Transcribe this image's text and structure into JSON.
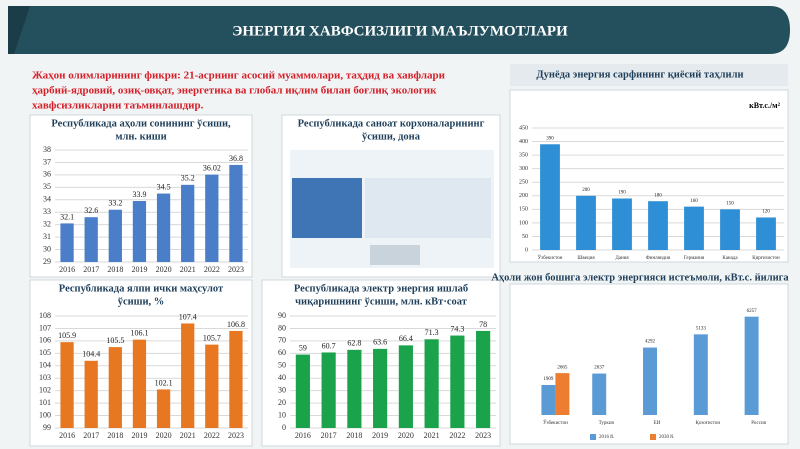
{
  "header": {
    "title": "ЭНЕРГИЯ ХАВФСИЗЛИГИ МАЪЛУМОТЛАРИ"
  },
  "quote": [
    "Жаҳон олимларининг фикри: 21-асрнинг асосий муаммолари, таҳдид ва хавфлари",
    "ҳарбий-ядровий, озиқ-овқат, энергетика ва глобал иқлим билан боғлиқ экологик",
    "хавфсизликларни таъминлашдир."
  ],
  "chart_data": [
    {
      "type": "bar",
      "title": [
        "Республикада аҳоли сонининг ўсиши,",
        "млн. киши"
      ],
      "categories": [
        "2016",
        "2017",
        "2018",
        "2019",
        "2020",
        "2021",
        "2022",
        "2023"
      ],
      "values": [
        32.1,
        32.6,
        33.2,
        33.9,
        34.5,
        35.2,
        36.02,
        36.8
      ],
      "color": "#4a7ec9",
      "ylim": [
        29,
        38
      ],
      "yticks": [
        29,
        30,
        31,
        32,
        33,
        34,
        35,
        36,
        37,
        38
      ],
      "grid": true
    },
    {
      "type": "image",
      "title": [
        "Республикада саноат корхоналарининг",
        "ўсиши, дона"
      ]
    },
    {
      "type": "bar",
      "title": [
        "Республикада ялпи ички маҳсулот",
        "ўсиши, %"
      ],
      "categories": [
        "2016",
        "2017",
        "2018",
        "2019",
        "2020",
        "2021",
        "2022",
        "2023"
      ],
      "values": [
        105.9,
        104.4,
        105.5,
        106.1,
        102.1,
        107.4,
        105.7,
        106.8
      ],
      "color": "#e87722",
      "ylim": [
        99,
        108
      ],
      "yticks": [
        99,
        100,
        101,
        102,
        103,
        104,
        105,
        106,
        107,
        108
      ],
      "grid": true
    },
    {
      "type": "bar",
      "title": [
        "Республикада электр энергия ишлаб",
        "чиқаришнинг ўсиши, млн. кВт·соат"
      ],
      "categories": [
        "2016",
        "2017",
        "2018",
        "2019",
        "2020",
        "2021",
        "2022",
        "2023"
      ],
      "values": [
        59,
        60.7,
        62.8,
        63.6,
        66.4,
        71.3,
        74.3,
        78
      ],
      "color": "#1aa34a",
      "ylim": [
        0,
        90
      ],
      "yticks": [
        0,
        10,
        20,
        30,
        40,
        50,
        60,
        70,
        80,
        90
      ],
      "grid": true
    },
    {
      "type": "bar",
      "title": [
        "Дунёда энергия сарфининг қиёсий таҳлили"
      ],
      "unit": "кВт.с./м²",
      "categories": [
        "Ўзбекистон",
        "Швеция",
        "Дания",
        "Финляндия",
        "Германия",
        "Канада",
        "Қирғизистон"
      ],
      "values": [
        390,
        200,
        190,
        180,
        160,
        150,
        120
      ],
      "color": "#2e8fd6",
      "ylim": [
        0,
        450
      ],
      "yticks": [
        0,
        50,
        100,
        150,
        200,
        250,
        300,
        350,
        400,
        450
      ],
      "grid": true
    },
    {
      "type": "grouped",
      "title": [
        "Аҳоли жон бошига электр энергияси истеъмоли, кВт.с. йилига"
      ],
      "categories": [
        "Ўзбекистон",
        "Туркия",
        "ЕИ",
        "Қозоғистон",
        "Россия"
      ],
      "series": [
        {
          "name": "2016 й.",
          "color": "#5b9bd5",
          "values": [
            1909,
            2637,
            4292,
            5133,
            6257
          ]
        },
        {
          "name": "2030 й.",
          "color": "#ed7d31",
          "values": [
            2665,
            null,
            null,
            null,
            null
          ]
        }
      ],
      "ylim": [
        0,
        7000
      ],
      "grid": false
    }
  ]
}
